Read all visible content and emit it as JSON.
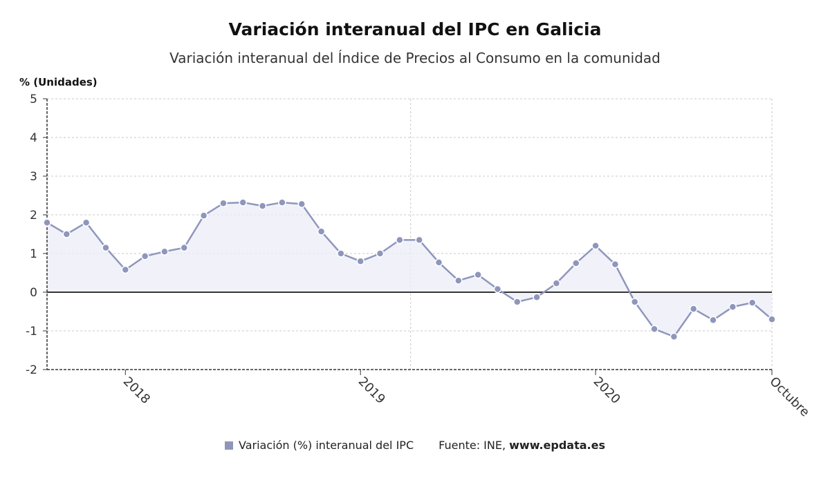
{
  "colors": {
    "series": "#8f96bc",
    "fill": "#eceef7",
    "grid": "#c8c8c8",
    "axis": "#333333",
    "zero_line": "#333333"
  },
  "chart_data": {
    "type": "line",
    "title": "Variación interanual del IPC en Galicia",
    "subtitle": "Variación interanual del Índice de Precios al Consumo en la comunidad",
    "ylabel": "% (Unidades)",
    "ylim": [
      -2,
      5
    ],
    "yticks": [
      5,
      4,
      3,
      2,
      1,
      0,
      -1,
      -2
    ],
    "grid": true,
    "xtick_labels": [
      {
        "index": 4,
        "label": "2018"
      },
      {
        "index": 16,
        "label": "2019"
      },
      {
        "index": 28,
        "label": "2020"
      },
      {
        "index": 37,
        "label": "Octubre"
      }
    ],
    "series": [
      {
        "name": "Variación (%) interanual del IPC",
        "values": [
          1.8,
          1.5,
          1.8,
          1.15,
          0.58,
          0.93,
          1.05,
          1.15,
          1.98,
          2.3,
          2.32,
          2.23,
          2.32,
          2.28,
          1.57,
          1.0,
          0.8,
          1.0,
          1.35,
          1.35,
          0.77,
          0.3,
          0.45,
          0.08,
          -0.25,
          -0.13,
          0.23,
          0.75,
          1.2,
          0.72,
          -0.25,
          -0.95,
          -1.15,
          -0.43,
          -0.72,
          -0.38,
          -0.27,
          -0.7
        ]
      }
    ]
  },
  "legend": {
    "series_label": "Variación (%) interanual del IPC",
    "source_prefix": "Fuente: INE, ",
    "source_site": "www.epdata.es"
  }
}
